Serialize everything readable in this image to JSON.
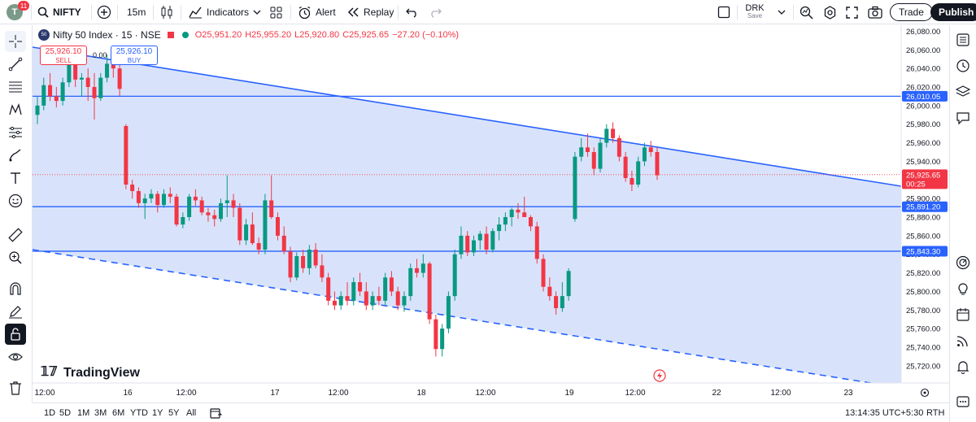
{
  "topbar": {
    "avatar_letter": "T",
    "notification_count": "11",
    "symbol": "NIFTY",
    "interval": "15m",
    "indicators": "Indicators",
    "alert": "Alert",
    "replay": "Replay",
    "layout_name": "DRK",
    "layout_status": "Save",
    "trade": "Trade",
    "publish": "Publish"
  },
  "legend": {
    "logo_text": "50",
    "title": "Nifty 50 Index · 15 · NSE",
    "open": "O25,951.20",
    "high": "H25,955.20",
    "low": "L25,920.80",
    "close": "C25,925.65",
    "change": "−27.20 (−0.10%)"
  },
  "trade_boxes": {
    "sell_price": "25,926.10",
    "sell_label": "SELL",
    "spread": "0.00",
    "buy_price": "25,926.10",
    "buy_label": "BUY"
  },
  "watermark": "TradingView",
  "chart_data": {
    "type": "candlestick",
    "y_ticks": [
      "26,080.00",
      "26,060.00",
      "26,040.00",
      "26,020.00",
      "26,000.00",
      "25,980.00",
      "25,960.00",
      "25,940.00",
      "25,920.00",
      "25,900.00",
      "25,880.00",
      "25,860.00",
      "25,840.00",
      "25,820.00",
      "25,800.00",
      "25,780.00",
      "25,760.00",
      "25,740.00",
      "25,720.00"
    ],
    "ylim": [
      25712,
      26083
    ],
    "x_ticks": [
      "12:00",
      "16",
      "12:00",
      "17",
      "12:00",
      "18",
      "12:00",
      "19",
      "12:00",
      "22",
      "12:00",
      "23"
    ],
    "horizontal_lines": [
      {
        "value": 26010.05,
        "label": "26,010.05"
      },
      {
        "value": 25891.2,
        "label": "25,891.20"
      },
      {
        "value": 25843.3,
        "label": "25,843.30"
      }
    ],
    "current_price": {
      "value": 25925.65,
      "label": "25,925.65",
      "countdown": "00:25"
    },
    "colors": {
      "up": "#089981",
      "down": "#f23645",
      "line": "#2962ff",
      "fill": "#d6e1fb"
    },
    "candles": [
      [
        25990,
        26010,
        25980,
        26000
      ],
      [
        26000,
        26030,
        25995,
        26022
      ],
      [
        26022,
        26035,
        26005,
        26010
      ],
      [
        26010,
        26020,
        25998,
        26005
      ],
      [
        26005,
        26030,
        26000,
        26025
      ],
      [
        26025,
        26050,
        26020,
        26045
      ],
      [
        26045,
        26050,
        26020,
        26028
      ],
      [
        26028,
        26035,
        26010,
        26030
      ],
      [
        26030,
        26040,
        26005,
        26020
      ],
      [
        26020,
        26035,
        25985,
        26008
      ],
      [
        26008,
        26035,
        26005,
        26030
      ],
      [
        26030,
        26055,
        26025,
        26045
      ],
      [
        26045,
        26050,
        26030,
        26040
      ],
      [
        26040,
        26045,
        26010,
        26018
      ],
      [
        25978,
        25980,
        25910,
        25915
      ],
      [
        25915,
        25920,
        25900,
        25908
      ],
      [
        25908,
        25912,
        25890,
        25895
      ],
      [
        25895,
        25905,
        25878,
        25900
      ],
      [
        25900,
        25910,
        25895,
        25905
      ],
      [
        25905,
        25908,
        25885,
        25893
      ],
      [
        25893,
        25910,
        25890,
        25905
      ],
      [
        25905,
        25912,
        25895,
        25902
      ],
      [
        25902,
        25905,
        25870,
        25872
      ],
      [
        25872,
        25885,
        25868,
        25880
      ],
      [
        25880,
        25905,
        25876,
        25902
      ],
      [
        25902,
        25910,
        25892,
        25898
      ],
      [
        25898,
        25902,
        25882,
        25885
      ],
      [
        25885,
        25890,
        25875,
        25882
      ],
      [
        25882,
        25888,
        25870,
        25878
      ],
      [
        25878,
        25900,
        25875,
        25895
      ],
      [
        25895,
        25925,
        25880,
        25898
      ],
      [
        25898,
        25905,
        25880,
        25890
      ],
      [
        25890,
        25895,
        25850,
        25855
      ],
      [
        25855,
        25878,
        25850,
        25872
      ],
      [
        25872,
        25885,
        25850,
        25852
      ],
      [
        25852,
        25858,
        25840,
        25845
      ],
      [
        25845,
        25905,
        25840,
        25898
      ],
      [
        25898,
        25925,
        25878,
        25880
      ],
      [
        25880,
        25885,
        25855,
        25860
      ],
      [
        25860,
        25870,
        25840,
        25843
      ],
      [
        25843,
        25848,
        25810,
        25815
      ],
      [
        25815,
        25842,
        25812,
        25838
      ],
      [
        25838,
        25845,
        25820,
        25825
      ],
      [
        25825,
        25850,
        25818,
        25845
      ],
      [
        25845,
        25852,
        25825,
        25828
      ],
      [
        25828,
        25840,
        25810,
        25815
      ],
      [
        25815,
        25820,
        25785,
        25790
      ],
      [
        25790,
        25800,
        25780,
        25785
      ],
      [
        25785,
        25800,
        25780,
        25795
      ],
      [
        25795,
        25810,
        25785,
        25790
      ],
      [
        25790,
        25815,
        25785,
        25810
      ],
      [
        25810,
        25820,
        25795,
        25800
      ],
      [
        25800,
        25810,
        25780,
        25785
      ],
      [
        25785,
        25800,
        25780,
        25795
      ],
      [
        25795,
        25805,
        25785,
        25790
      ],
      [
        25790,
        25820,
        25785,
        25815
      ],
      [
        25815,
        25822,
        25795,
        25800
      ],
      [
        25800,
        25805,
        25780,
        25785
      ],
      [
        25785,
        25800,
        25778,
        25795
      ],
      [
        25795,
        25830,
        25790,
        25825
      ],
      [
        25825,
        25835,
        25815,
        25820
      ],
      [
        25820,
        25840,
        25815,
        25830
      ],
      [
        25830,
        25832,
        25765,
        25770
      ],
      [
        25770,
        25775,
        25730,
        25738
      ],
      [
        25738,
        25765,
        25730,
        25760
      ],
      [
        25760,
        25800,
        25755,
        25795
      ],
      [
        25795,
        25845,
        25790,
        25840
      ],
      [
        25840,
        25870,
        25835,
        25860
      ],
      [
        25860,
        25865,
        25838,
        25842
      ],
      [
        25842,
        25860,
        25838,
        25855
      ],
      [
        25855,
        25865,
        25845,
        25862
      ],
      [
        25862,
        25870,
        25840,
        25845
      ],
      [
        25845,
        25868,
        25842,
        25865
      ],
      [
        25865,
        25880,
        25855,
        25872
      ],
      [
        25872,
        25885,
        25865,
        25880
      ],
      [
        25880,
        25890,
        25870,
        25888
      ],
      [
        25888,
        25895,
        25878,
        25885
      ],
      [
        25885,
        25902,
        25880,
        25880
      ],
      [
        25880,
        25882,
        25865,
        25870
      ],
      [
        25870,
        25875,
        25830,
        25835
      ],
      [
        25835,
        25840,
        25800,
        25805
      ],
      [
        25805,
        25815,
        25790,
        25795
      ],
      [
        25795,
        25800,
        25775,
        25782
      ],
      [
        25782,
        25810,
        25778,
        25795
      ],
      [
        25795,
        25825,
        25790,
        25822
      ],
      [
        25878,
        25950,
        25875,
        25945
      ],
      [
        25945,
        25965,
        25940,
        25955
      ],
      [
        25955,
        25970,
        25945,
        25950
      ],
      [
        25950,
        25955,
        25925,
        25932
      ],
      [
        25932,
        25965,
        25928,
        25960
      ],
      [
        25960,
        25980,
        25955,
        25975
      ],
      [
        25975,
        25982,
        25960,
        25965
      ],
      [
        25965,
        25968,
        25940,
        25945
      ],
      [
        25945,
        25950,
        25918,
        25922
      ],
      [
        25922,
        25930,
        25908,
        25915
      ],
      [
        25915,
        25945,
        25912,
        25940
      ],
      [
        25940,
        25960,
        25935,
        25955
      ],
      [
        25955,
        25962,
        25945,
        25950
      ],
      [
        25950,
        25955,
        25920,
        25925
      ]
    ]
  },
  "time_axis": {
    "time": "13:14:35 UTC+5:30",
    "session": "RTH"
  },
  "ranges": [
    "1D",
    "5D",
    "1M",
    "3M",
    "6M",
    "YTD",
    "1Y",
    "5Y",
    "All"
  ]
}
